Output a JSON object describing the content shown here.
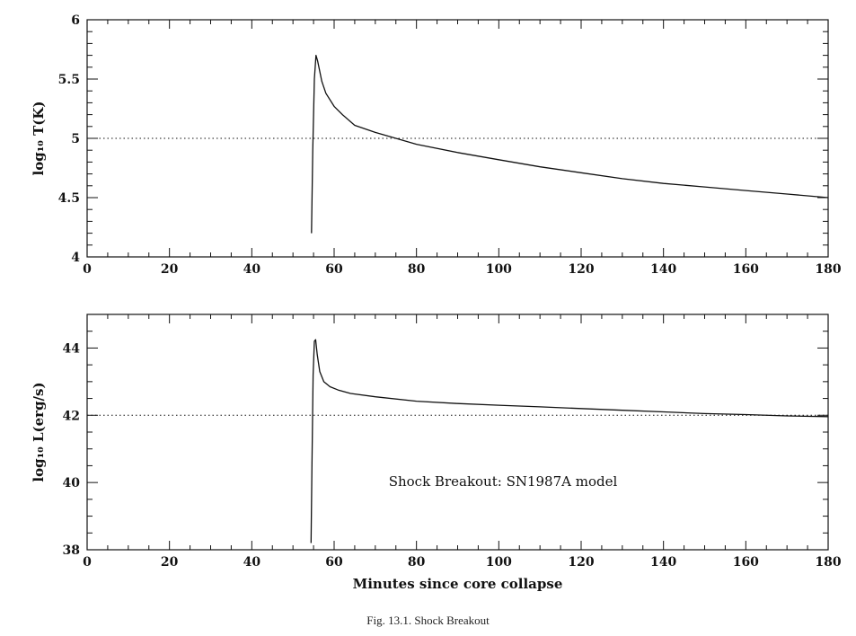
{
  "caption": "Fig. 13.1. Shock Breakout",
  "chart_data": [
    {
      "type": "line",
      "ylabel": "log₁₀ T(K)",
      "xlim": [
        0,
        180
      ],
      "ylim": [
        4,
        6
      ],
      "x_ticks": [
        "0",
        "20",
        "40",
        "60",
        "80",
        "100",
        "120",
        "140",
        "160",
        "180"
      ],
      "y_ticks": [
        "4",
        "4.5",
        "5",
        "5.5",
        "6"
      ],
      "reference_line": 5,
      "series": [
        {
          "x": [
            54.5,
            54.8,
            55.2,
            55.6,
            56.0,
            57.0,
            58.0,
            60.0,
            62.0,
            65.0,
            70.0,
            75.0,
            80.0,
            90.0,
            100.0,
            110.0,
            120.0,
            130.0,
            140.0,
            150.0,
            160.0,
            170.0,
            180.0
          ],
          "y": [
            4.2,
            4.9,
            5.5,
            5.7,
            5.65,
            5.48,
            5.38,
            5.27,
            5.2,
            5.11,
            5.05,
            5.0,
            4.95,
            4.88,
            4.82,
            4.76,
            4.71,
            4.66,
            4.62,
            4.59,
            4.56,
            4.53,
            4.5
          ]
        }
      ]
    },
    {
      "type": "line",
      "xlabel": "Minutes since core collapse",
      "ylabel": "log₁₀ L(erg/s)",
      "xlim": [
        0,
        180
      ],
      "ylim": [
        38,
        45
      ],
      "x_ticks": [
        "0",
        "20",
        "40",
        "60",
        "80",
        "100",
        "120",
        "140",
        "160",
        "180"
      ],
      "y_ticks": [
        "38",
        "40",
        "42",
        "44"
      ],
      "reference_line": 42,
      "annotation": "Shock Breakout: SN1987A model",
      "series": [
        {
          "x": [
            54.4,
            54.6,
            54.9,
            55.2,
            55.5,
            55.9,
            56.5,
            57.5,
            59.0,
            61.0,
            64.0,
            70.0,
            80.0,
            90.0,
            100.0,
            110.0,
            120.0,
            130.0,
            140.0,
            150.0,
            160.0,
            170.0,
            180.0
          ],
          "y": [
            38.2,
            40.5,
            43.2,
            44.2,
            44.25,
            43.8,
            43.3,
            43.0,
            42.85,
            42.75,
            42.65,
            42.55,
            42.42,
            42.35,
            42.3,
            42.25,
            42.2,
            42.15,
            42.1,
            42.05,
            42.02,
            41.98,
            41.96
          ]
        }
      ]
    }
  ]
}
